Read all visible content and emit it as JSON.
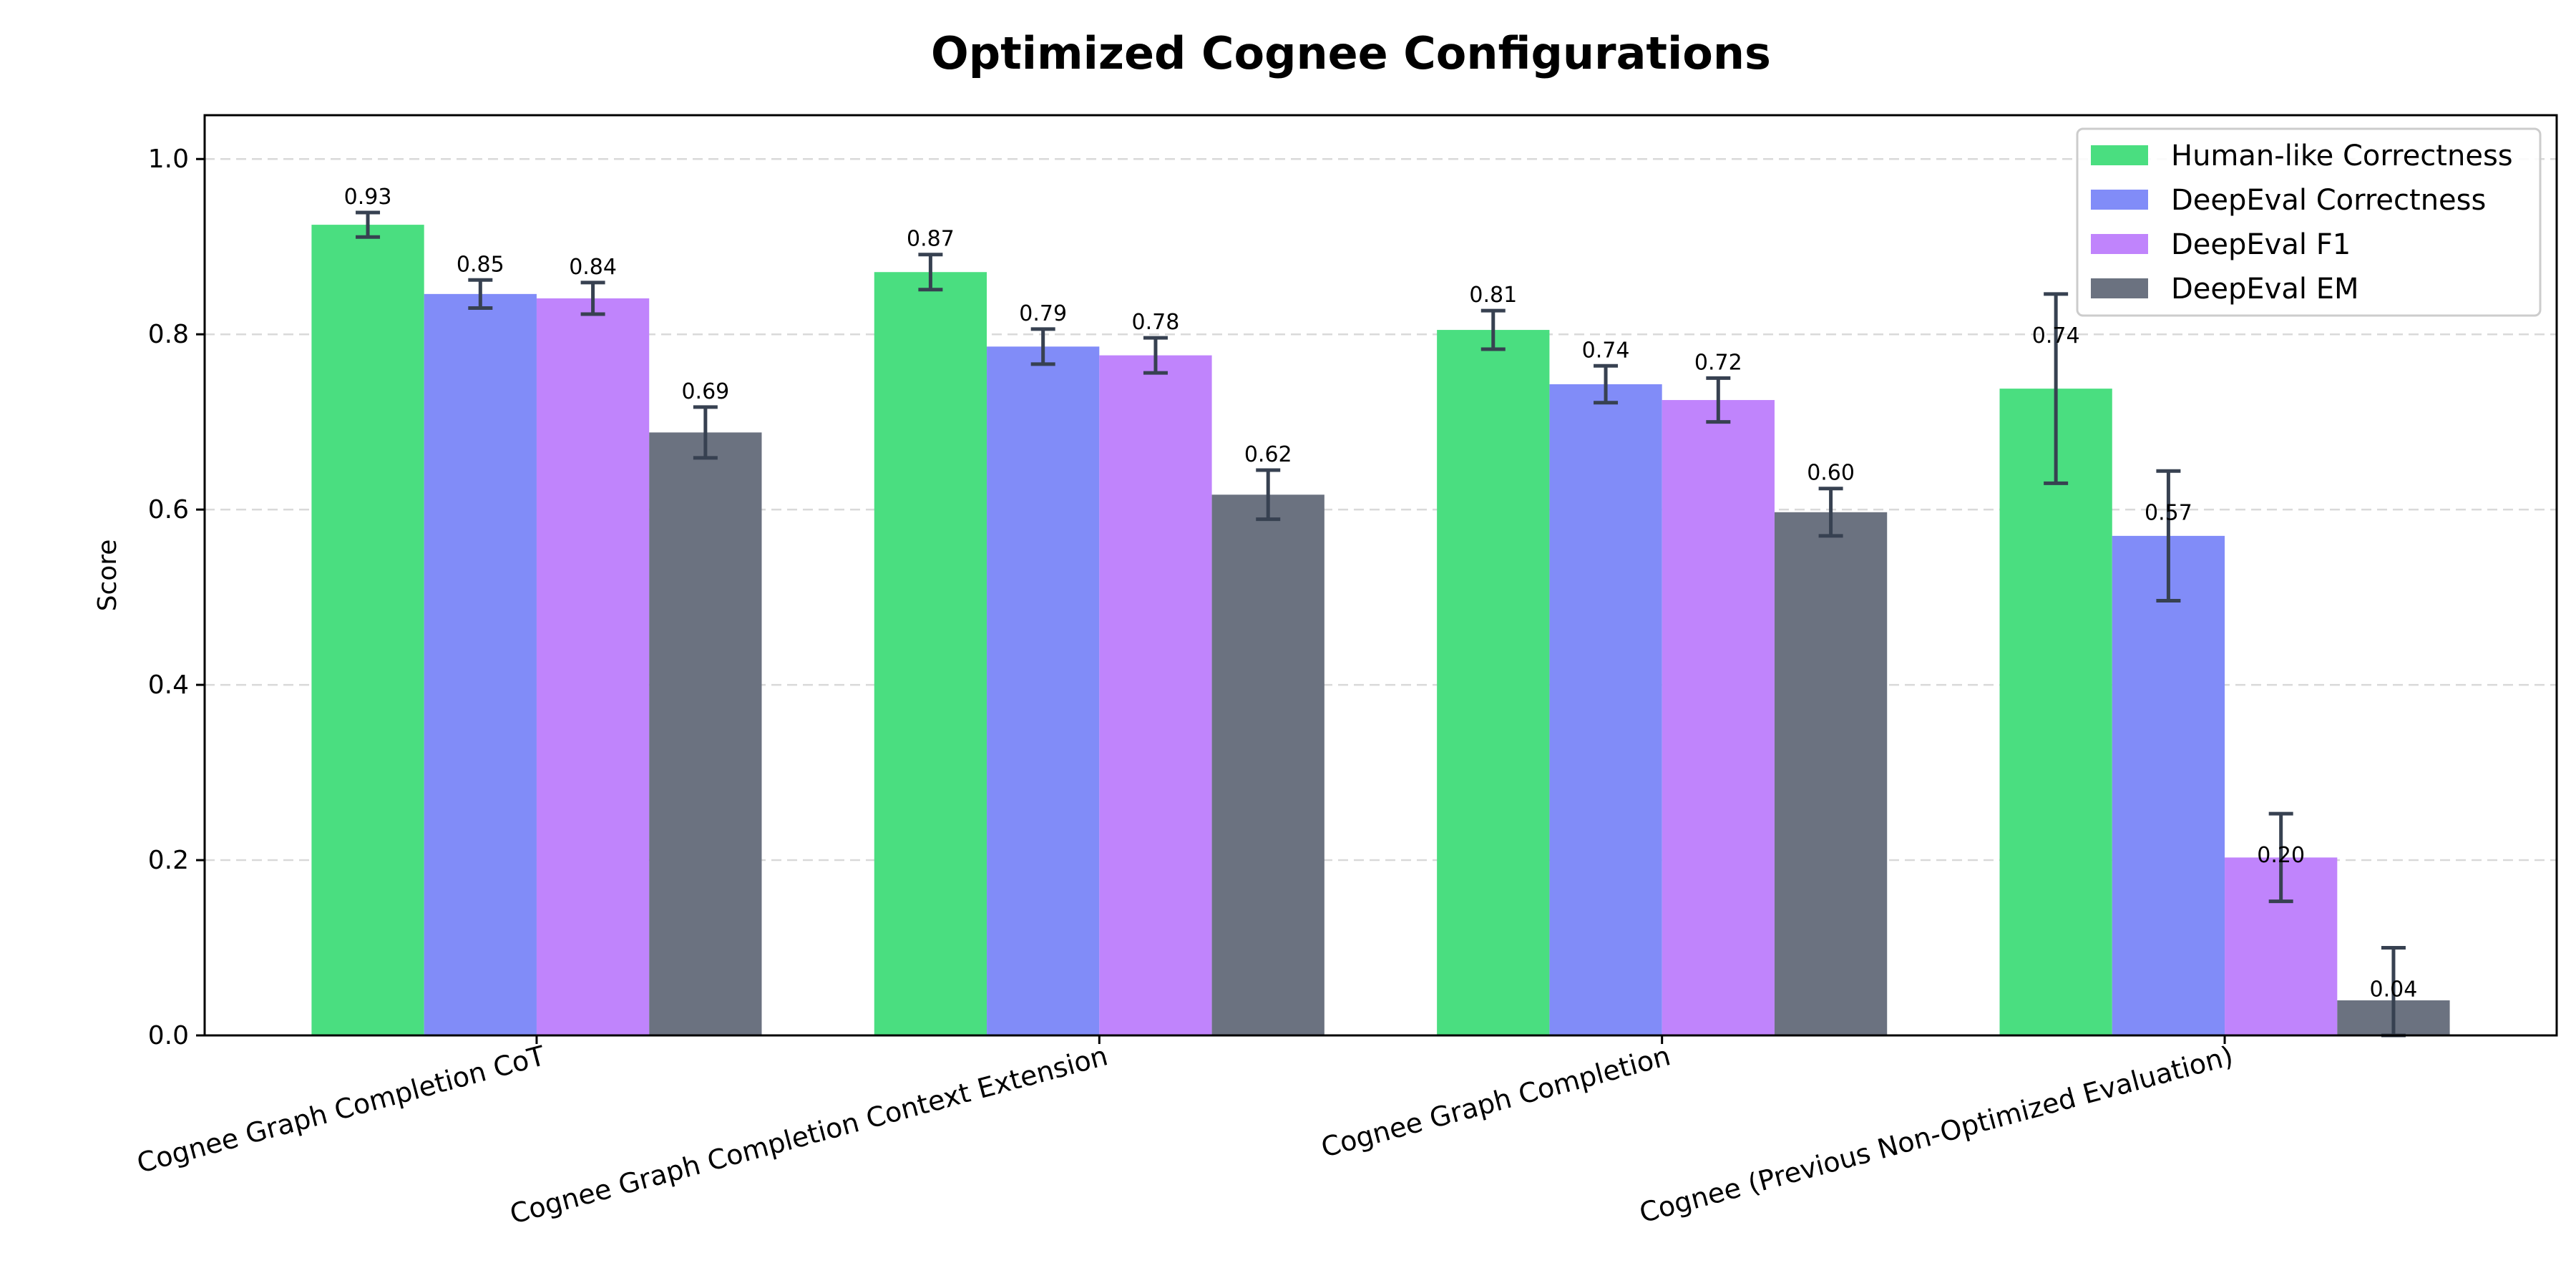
{
  "chart_data": {
    "type": "bar",
    "title": "Optimized Cognee Configurations",
    "xlabel": "",
    "ylabel": "Score",
    "ylim": [
      0,
      1.05
    ],
    "yticks": [
      "0.0",
      "0.2",
      "0.4",
      "0.6",
      "0.8",
      "1.0"
    ],
    "grid": "y, dashed",
    "legend_position": "top-right",
    "categories": [
      "Cognee Graph Completion CoT",
      "Cognee Graph Completion Context Extension",
      "Cognee Graph Completion",
      "Cognee (Previous Non-Optimized Evaluation)"
    ],
    "series": [
      {
        "name": "Human-like Correctness",
        "color": "#4ade80",
        "values": [
          0.925,
          0.871,
          0.805,
          0.738
        ],
        "labels": [
          "0.93",
          "0.87",
          "0.81",
          "0.74"
        ],
        "errors": [
          0.014,
          0.02,
          0.022,
          0.108
        ]
      },
      {
        "name": "DeepEval Correctness",
        "color": "#818cf8",
        "values": [
          0.846,
          0.786,
          0.743,
          0.57
        ],
        "labels": [
          "0.85",
          "0.79",
          "0.74",
          "0.57"
        ],
        "errors": [
          0.016,
          0.02,
          0.021,
          0.074
        ]
      },
      {
        "name": "DeepEval F1",
        "color": "#c084fc",
        "values": [
          0.841,
          0.776,
          0.725,
          0.203
        ],
        "labels": [
          "0.84",
          "0.78",
          "0.72",
          "0.20"
        ],
        "errors": [
          0.018,
          0.02,
          0.025,
          0.05
        ]
      },
      {
        "name": "DeepEval EM",
        "color": "#6b7280",
        "values": [
          0.688,
          0.617,
          0.597,
          0.04
        ],
        "labels": [
          "0.69",
          "0.62",
          "0.60",
          "0.04"
        ],
        "errors": [
          0.029,
          0.028,
          0.027,
          0.06
        ]
      }
    ],
    "error_bar_color": "#374151"
  }
}
